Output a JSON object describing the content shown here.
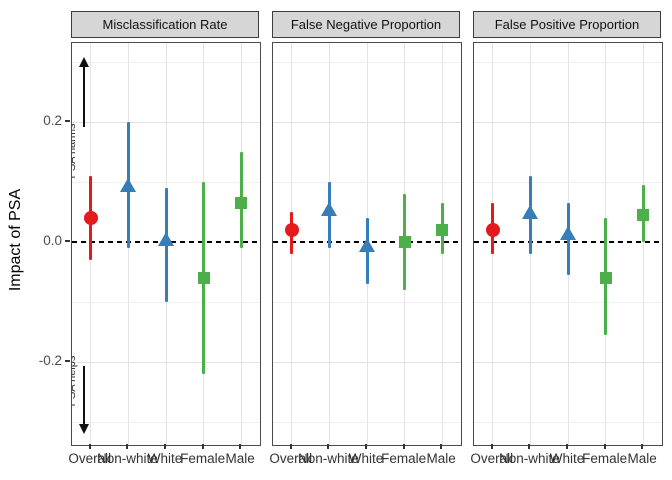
{
  "chart_data": {
    "type": "scatter",
    "subtype": "faceted-point-range",
    "title": "",
    "ylabel": "Impact of PSA",
    "categories": [
      "Overall",
      "Non-white",
      "White",
      "Female",
      "Male"
    ],
    "legend_position": "none",
    "grid": true,
    "y_axis": {
      "limits": [
        -0.34,
        0.34
      ],
      "ticks": [
        {
          "label": "0.2",
          "value": 0.2
        },
        {
          "label": "0.0",
          "value": 0.0
        },
        {
          "label": "-0.2",
          "value": -0.2
        }
      ],
      "major_grid": [
        0.2,
        -0.2
      ],
      "minor_grid": [
        0.3,
        0.1,
        -0.1,
        -0.3
      ]
    },
    "zero_line": {
      "value": 0,
      "style": "dashed",
      "color": "#000000"
    },
    "annotations": {
      "panel": "Misclassification Rate",
      "up_arrow_label": "PSA harms",
      "down_arrow_label": "PSA helps"
    },
    "colors": {
      "overall": "#E41A1C",
      "race": "#377EB8",
      "sex": "#4DAF4A"
    },
    "markers": {
      "overall": "circle",
      "race": "triangle",
      "sex": "square"
    },
    "panels": [
      {
        "title": "Misclassification Rate",
        "points": [
          {
            "category": "Overall",
            "marker": "circle",
            "color": "#E41A1C",
            "estimate": 0.04,
            "lower": -0.03,
            "upper": 0.11
          },
          {
            "category": "Non-white",
            "marker": "triangle",
            "color": "#377EB8",
            "estimate": 0.09,
            "lower": -0.01,
            "upper": 0.2
          },
          {
            "category": "White",
            "marker": "triangle",
            "color": "#377EB8",
            "estimate": 0.0,
            "lower": -0.1,
            "upper": 0.09
          },
          {
            "category": "Female",
            "marker": "square",
            "color": "#4DAF4A",
            "estimate": -0.06,
            "lower": -0.22,
            "upper": 0.1
          },
          {
            "category": "Male",
            "marker": "square",
            "color": "#4DAF4A",
            "estimate": 0.065,
            "lower": -0.01,
            "upper": 0.15
          }
        ]
      },
      {
        "title": "False Negative Proportion",
        "points": [
          {
            "category": "Overall",
            "marker": "circle",
            "color": "#E41A1C",
            "estimate": 0.02,
            "lower": -0.02,
            "upper": 0.05
          },
          {
            "category": "Non-white",
            "marker": "triangle",
            "color": "#377EB8",
            "estimate": 0.05,
            "lower": -0.01,
            "upper": 0.1
          },
          {
            "category": "White",
            "marker": "triangle",
            "color": "#377EB8",
            "estimate": -0.01,
            "lower": -0.07,
            "upper": 0.04
          },
          {
            "category": "Female",
            "marker": "square",
            "color": "#4DAF4A",
            "estimate": 0.0,
            "lower": -0.08,
            "upper": 0.08
          },
          {
            "category": "Male",
            "marker": "square",
            "color": "#4DAF4A",
            "estimate": 0.02,
            "lower": -0.02,
            "upper": 0.065
          }
        ]
      },
      {
        "title": "False Positive Proportion",
        "points": [
          {
            "category": "Overall",
            "marker": "circle",
            "color": "#E41A1C",
            "estimate": 0.02,
            "lower": -0.02,
            "upper": 0.065
          },
          {
            "category": "Non-white",
            "marker": "triangle",
            "color": "#377EB8",
            "estimate": 0.045,
            "lower": -0.02,
            "upper": 0.11
          },
          {
            "category": "White",
            "marker": "triangle",
            "color": "#377EB8",
            "estimate": 0.01,
            "lower": -0.055,
            "upper": 0.065
          },
          {
            "category": "Female",
            "marker": "square",
            "color": "#4DAF4A",
            "estimate": -0.06,
            "lower": -0.155,
            "upper": 0.04
          },
          {
            "category": "Male",
            "marker": "square",
            "color": "#4DAF4A",
            "estimate": 0.045,
            "lower": 0.0,
            "upper": 0.095
          }
        ]
      }
    ]
  }
}
